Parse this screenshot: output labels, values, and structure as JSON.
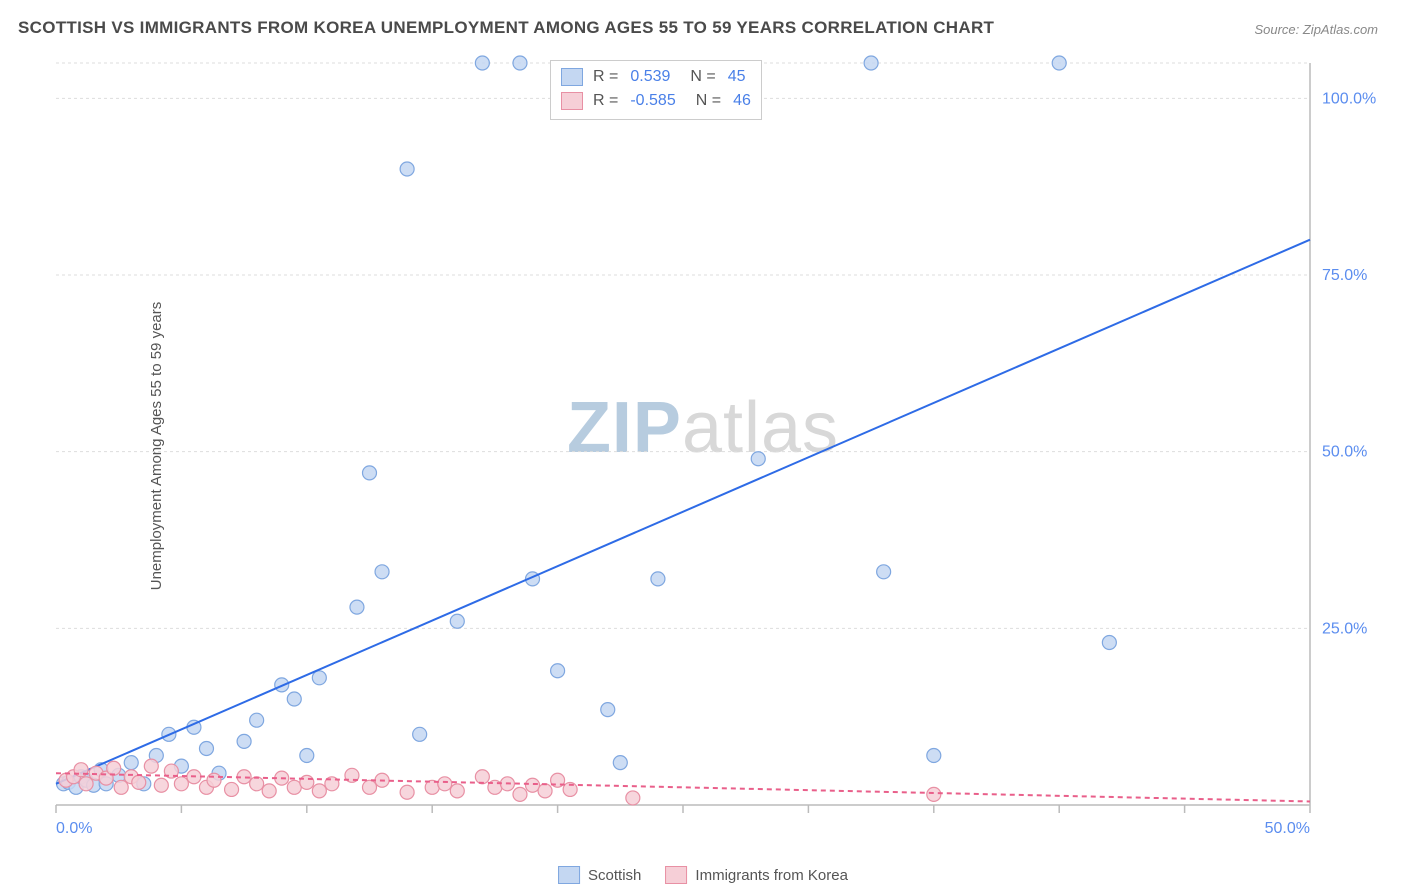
{
  "title": "SCOTTISH VS IMMIGRANTS FROM KOREA UNEMPLOYMENT AMONG AGES 55 TO 59 YEARS CORRELATION CHART",
  "source": "Source: ZipAtlas.com",
  "ylabel": "Unemployment Among Ages 55 to 59 years",
  "watermark_a": "ZIP",
  "watermark_b": "atlas",
  "chart": {
    "type": "scatter",
    "plot_bg": "#ffffff",
    "grid_color": "#dddddd",
    "axis_color": "#bbbbbb",
    "tick_color": "#5b8def",
    "xlim": [
      0,
      50
    ],
    "ylim": [
      0,
      105
    ],
    "xticks": [
      0,
      5,
      10,
      15,
      20,
      25,
      30,
      35,
      40,
      45,
      50
    ],
    "xtick_labels": {
      "0": "0.0%",
      "50": "50.0%"
    },
    "yticks": [
      25,
      50,
      75,
      100
    ],
    "ytick_labels": {
      "25": "25.0%",
      "50": "50.0%",
      "75": "75.0%",
      "100": "100.0%"
    },
    "marker_radius": 7,
    "marker_stroke_width": 1.2,
    "series": [
      {
        "name": "Scottish",
        "fill": "#c4d7f2",
        "stroke": "#7fa7e0",
        "line_color": "#2e6be6",
        "line_dash": "",
        "R": "0.539",
        "N": "45",
        "trend": {
          "x1": 0,
          "y1": 3,
          "x2": 50,
          "y2": 80
        },
        "points": [
          [
            0.3,
            3.0
          ],
          [
            0.5,
            3.2
          ],
          [
            0.8,
            2.5
          ],
          [
            1.0,
            4.0
          ],
          [
            1.2,
            3.5
          ],
          [
            1.5,
            2.8
          ],
          [
            1.8,
            5.0
          ],
          [
            2.0,
            3.0
          ],
          [
            2.5,
            4.2
          ],
          [
            3.0,
            6.0
          ],
          [
            3.5,
            3.0
          ],
          [
            4.0,
            7.0
          ],
          [
            4.5,
            10.0
          ],
          [
            5.0,
            5.5
          ],
          [
            5.5,
            11.0
          ],
          [
            6.0,
            8.0
          ],
          [
            6.5,
            4.5
          ],
          [
            7.5,
            9.0
          ],
          [
            8.0,
            12.0
          ],
          [
            9.0,
            17.0
          ],
          [
            9.5,
            15.0
          ],
          [
            10.0,
            7.0
          ],
          [
            10.5,
            18.0
          ],
          [
            12.0,
            28.0
          ],
          [
            12.5,
            47.0
          ],
          [
            13.0,
            33.0
          ],
          [
            14.0,
            90.0
          ],
          [
            14.5,
            10.0
          ],
          [
            16.0,
            26.0
          ],
          [
            17.0,
            105.0
          ],
          [
            18.5,
            105.0
          ],
          [
            19.0,
            32.0
          ],
          [
            20.0,
            19.0
          ],
          [
            22.0,
            13.5
          ],
          [
            22.5,
            6.0
          ],
          [
            24.0,
            32.0
          ],
          [
            28.0,
            49.0
          ],
          [
            32.5,
            105.0
          ],
          [
            33.0,
            33.0
          ],
          [
            35.0,
            7.0
          ],
          [
            40.0,
            105.0
          ],
          [
            42.0,
            23.0
          ]
        ]
      },
      {
        "name": "Immigrants from Korea",
        "fill": "#f6cfd7",
        "stroke": "#e890a4",
        "line_color": "#e95f8a",
        "line_dash": "5,4",
        "R": "-0.585",
        "N": "46",
        "trend": {
          "x1": 0,
          "y1": 4.5,
          "x2": 50,
          "y2": 0.5
        },
        "points": [
          [
            0.4,
            3.5
          ],
          [
            0.7,
            4.0
          ],
          [
            1.0,
            5.0
          ],
          [
            1.2,
            3.0
          ],
          [
            1.6,
            4.5
          ],
          [
            2.0,
            3.8
          ],
          [
            2.3,
            5.2
          ],
          [
            2.6,
            2.5
          ],
          [
            3.0,
            4.0
          ],
          [
            3.3,
            3.2
          ],
          [
            3.8,
            5.5
          ],
          [
            4.2,
            2.8
          ],
          [
            4.6,
            4.8
          ],
          [
            5.0,
            3.0
          ],
          [
            5.5,
            4.0
          ],
          [
            6.0,
            2.5
          ],
          [
            6.3,
            3.5
          ],
          [
            7.0,
            2.2
          ],
          [
            7.5,
            4.0
          ],
          [
            8.0,
            3.0
          ],
          [
            8.5,
            2.0
          ],
          [
            9.0,
            3.8
          ],
          [
            9.5,
            2.5
          ],
          [
            10.0,
            3.2
          ],
          [
            10.5,
            2.0
          ],
          [
            11.0,
            3.0
          ],
          [
            11.8,
            4.2
          ],
          [
            12.5,
            2.5
          ],
          [
            13.0,
            3.5
          ],
          [
            14.0,
            1.8
          ],
          [
            15.0,
            2.5
          ],
          [
            15.5,
            3.0
          ],
          [
            16.0,
            2.0
          ],
          [
            17.0,
            4.0
          ],
          [
            17.5,
            2.5
          ],
          [
            18.0,
            3.0
          ],
          [
            18.5,
            1.5
          ],
          [
            19.0,
            2.8
          ],
          [
            19.5,
            2.0
          ],
          [
            20.0,
            3.5
          ],
          [
            20.5,
            2.2
          ],
          [
            23.0,
            1.0
          ],
          [
            35.0,
            1.5
          ]
        ]
      }
    ]
  },
  "legend_box": {
    "r_label": "R =",
    "n_label": "N ="
  },
  "legend_bottom": [
    "Scottish",
    "Immigrants from Korea"
  ]
}
